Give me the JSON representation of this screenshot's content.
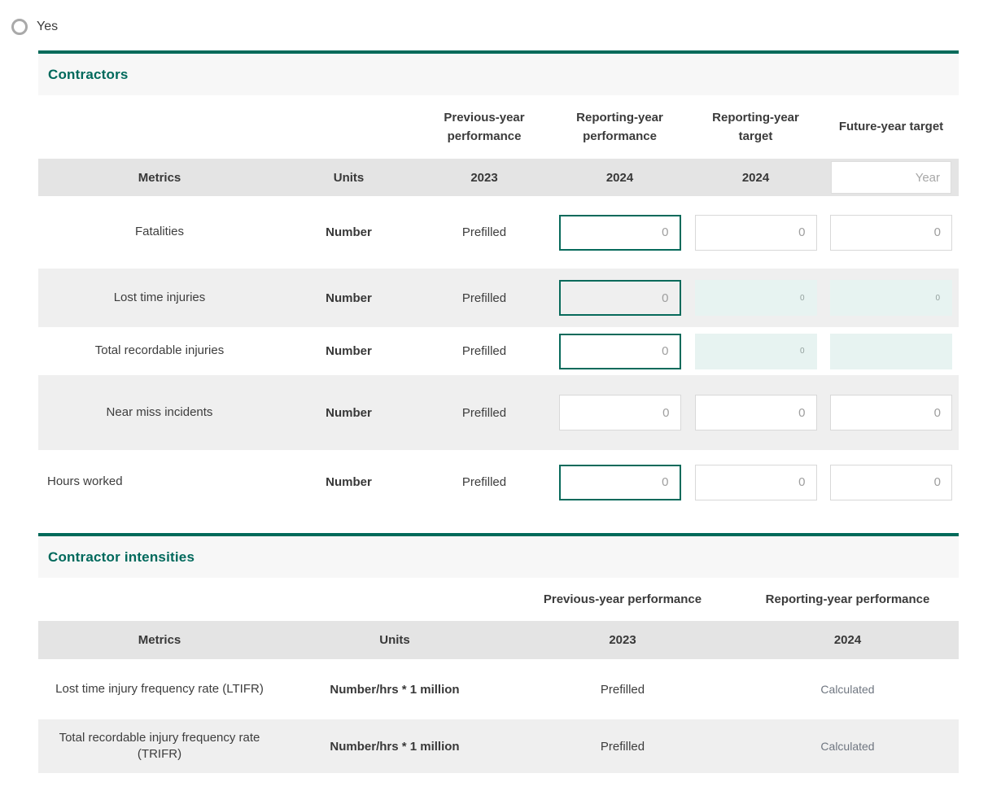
{
  "radio": {
    "label": "Yes",
    "selected": false
  },
  "colors": {
    "accent_teal": "#006a5a",
    "title_teal": "#00695c",
    "header_band_bg": "#e4e4e4",
    "row_stripe_bg": "#efefef",
    "title_band_bg": "#f7f7f7",
    "readonly_input_bg": "#e7f3f1",
    "input_border": "#d8d8d8",
    "focused_input_border": "#076a5b",
    "placeholder_gray": "#9e9e9e",
    "calculated_text": "#6f7680",
    "body_text": "#3d3d3d"
  },
  "contractors": {
    "title": "Contractors",
    "group_headers": [
      "Previous-year performance",
      "Reporting-year performance",
      "Reporting-year target",
      "Future-year target"
    ],
    "columns": {
      "metrics": "Metrics",
      "units": "Units",
      "previous_year": "2023",
      "reporting_year": "2024",
      "reporting_target_year": "2024",
      "future_year_placeholder": "Year"
    },
    "rows": [
      {
        "metric": "Fatalities",
        "unit": "Number",
        "previous": "Prefilled",
        "reporting_input": {
          "state": "focused",
          "placeholder": "0"
        },
        "target_input": {
          "state": "default",
          "placeholder": "0"
        },
        "future_input": {
          "state": "default",
          "placeholder": "0"
        }
      },
      {
        "metric": "Lost time injuries",
        "unit": "Number",
        "previous": "Prefilled",
        "reporting_input": {
          "state": "focused",
          "placeholder": "0"
        },
        "target_input": {
          "state": "readonly",
          "placeholder": "0"
        },
        "future_input": {
          "state": "readonly",
          "placeholder": "0"
        }
      },
      {
        "metric": "Total recordable injuries",
        "unit": "Number",
        "previous": "Prefilled",
        "reporting_input": {
          "state": "focused",
          "placeholder": "0"
        },
        "target_input": {
          "state": "readonly",
          "placeholder": "0"
        },
        "future_input": {
          "state": "readonly",
          "placeholder": ""
        }
      },
      {
        "metric": "Near miss incidents",
        "unit": "Number",
        "previous": "Prefilled",
        "reporting_input": {
          "state": "default",
          "placeholder": "0"
        },
        "target_input": {
          "state": "default",
          "placeholder": "0"
        },
        "future_input": {
          "state": "default",
          "placeholder": "0"
        }
      },
      {
        "metric": "Hours worked",
        "unit": "Number",
        "previous": "Prefilled",
        "reporting_input": {
          "state": "focused",
          "placeholder": "0"
        },
        "target_input": {
          "state": "default",
          "placeholder": "0"
        },
        "future_input": {
          "state": "default",
          "placeholder": "0"
        }
      }
    ]
  },
  "intensities": {
    "title": "Contractor intensities",
    "group_headers": [
      "Previous-year performance",
      "Reporting-year performance"
    ],
    "columns": {
      "metrics": "Metrics",
      "units": "Units",
      "previous_year": "2023",
      "reporting_year": "2024"
    },
    "rows": [
      {
        "metric": "Lost time injury frequency rate (LTIFR)",
        "unit": "Number/hrs * 1 million",
        "previous": "Prefilled",
        "reporting": "Calculated"
      },
      {
        "metric": "Total recordable injury frequency rate (TRIFR)",
        "unit": "Number/hrs * 1 million",
        "previous": "Prefilled",
        "reporting": "Calculated"
      }
    ]
  }
}
